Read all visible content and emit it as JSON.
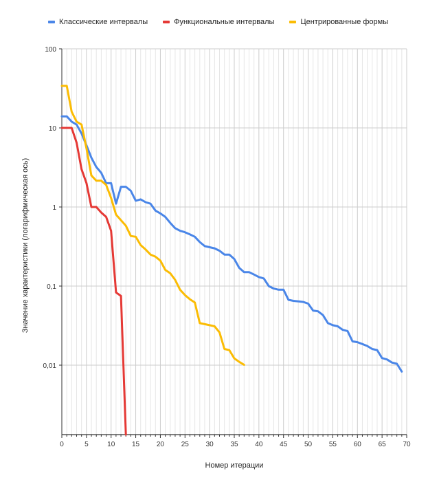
{
  "chart_data": {
    "type": "line",
    "title": "",
    "xlabel": "Номер итерации",
    "ylabel": "Значение характеристики (логарифмическая ось)",
    "y_scale": "log",
    "xlim": [
      0,
      70
    ],
    "ylim": [
      0.0013,
      100
    ],
    "x_ticks": [
      "0",
      "5",
      "10",
      "15",
      "20",
      "25",
      "30",
      "35",
      "40",
      "45",
      "50",
      "55",
      "60",
      "65",
      "70"
    ],
    "y_ticks": [
      {
        "value": 100,
        "label": "100"
      },
      {
        "value": 10,
        "label": "10"
      },
      {
        "value": 1,
        "label": "1"
      },
      {
        "value": 0.1,
        "label": "0,1"
      },
      {
        "value": 0.01,
        "label": "0,01"
      }
    ],
    "grid": true,
    "legend_position": "top-left",
    "series": [
      {
        "name": "Классические интервалы",
        "color": "#4a86e8",
        "x": [
          0,
          1,
          2,
          3,
          4,
          5,
          6,
          7,
          8,
          9,
          10,
          11,
          12,
          13,
          14,
          15,
          16,
          17,
          18,
          19,
          20,
          21,
          22,
          23,
          24,
          25,
          26,
          27,
          28,
          29,
          30,
          31,
          32,
          33,
          34,
          35,
          36,
          37,
          38,
          39,
          40,
          41,
          42,
          43,
          44,
          45,
          46,
          47,
          48,
          49,
          50,
          51,
          52,
          53,
          54,
          55,
          56,
          57,
          58,
          59,
          60,
          61,
          62,
          63,
          64,
          65,
          66,
          67,
          68,
          69
        ],
        "y": [
          14,
          14,
          12,
          11,
          8.5,
          6,
          4.2,
          3.2,
          2.7,
          2.0,
          2.0,
          1.1,
          1.8,
          1.8,
          1.6,
          1.2,
          1.25,
          1.15,
          1.1,
          0.9,
          0.83,
          0.75,
          0.63,
          0.54,
          0.5,
          0.48,
          0.45,
          0.42,
          0.36,
          0.32,
          0.31,
          0.3,
          0.28,
          0.25,
          0.25,
          0.22,
          0.17,
          0.15,
          0.15,
          0.14,
          0.13,
          0.125,
          0.1,
          0.093,
          0.09,
          0.09,
          0.067,
          0.065,
          0.064,
          0.063,
          0.06,
          0.049,
          0.048,
          0.043,
          0.034,
          0.032,
          0.031,
          0.028,
          0.027,
          0.02,
          0.0195,
          0.0185,
          0.0175,
          0.016,
          0.0155,
          0.0123,
          0.0118,
          0.0108,
          0.0104,
          0.0083
        ]
      },
      {
        "name": "Функциональные интервалы",
        "color": "#e53935",
        "x": [
          0,
          1,
          2,
          3,
          4,
          5,
          6,
          7,
          8,
          9,
          10,
          11,
          12,
          13
        ],
        "y": [
          10,
          10,
          10,
          6.5,
          3.0,
          2.0,
          1.0,
          1.0,
          0.85,
          0.75,
          0.5,
          0.083,
          0.075,
          0.0013
        ]
      },
      {
        "name": "Центрированные формы",
        "color": "#fbbc04",
        "x": [
          0,
          1,
          2,
          3,
          4,
          5,
          6,
          7,
          8,
          9,
          10,
          11,
          12,
          13,
          14,
          15,
          16,
          17,
          18,
          19,
          20,
          21,
          22,
          23,
          24,
          25,
          26,
          27,
          28,
          29,
          30,
          31,
          32,
          33,
          34,
          35,
          36,
          37
        ],
        "y": [
          34,
          34,
          16,
          12,
          11,
          5.5,
          2.5,
          2.15,
          2.15,
          1.9,
          1.3,
          0.8,
          0.68,
          0.58,
          0.43,
          0.42,
          0.33,
          0.29,
          0.25,
          0.235,
          0.21,
          0.16,
          0.145,
          0.12,
          0.09,
          0.077,
          0.068,
          0.062,
          0.034,
          0.033,
          0.032,
          0.031,
          0.026,
          0.016,
          0.0155,
          0.0122,
          0.011,
          0.0101
        ]
      }
    ]
  }
}
